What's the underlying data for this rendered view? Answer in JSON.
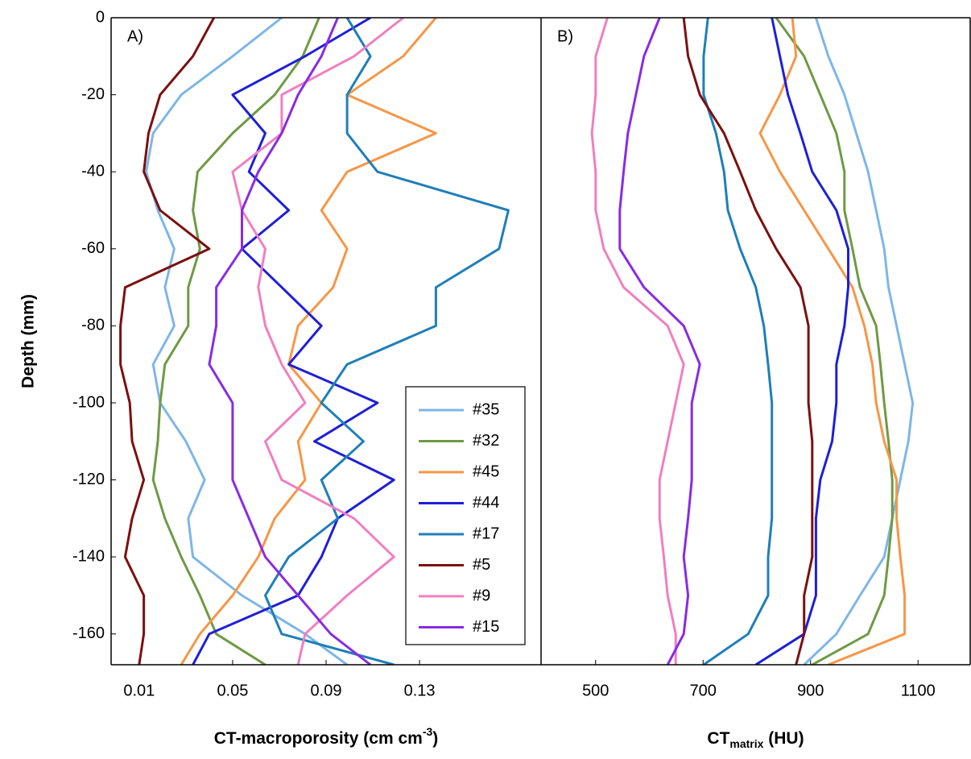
{
  "chart_data": [
    {
      "type": "line",
      "panel_label": "A)",
      "x_label": [
        "CT-macroporosity (cm cm",
        "-3",
        ")"
      ],
      "y_label": "Depth (mm)",
      "y": [
        0,
        -10,
        -20,
        -30,
        -40,
        -50,
        -60,
        -70,
        -80,
        -90,
        -100,
        -110,
        -120,
        -130,
        -140,
        -150,
        -160,
        -168
      ],
      "ylim": [
        -168,
        0
      ],
      "yticks": [
        0,
        -20,
        -40,
        -60,
        -80,
        -100,
        -120,
        -140,
        -160
      ],
      "xlim": [
        -0.002,
        0.182
      ],
      "xticks": [
        0.01,
        0.05,
        0.09,
        0.13
      ],
      "legend": "lower right",
      "series": [
        {
          "name": "#35",
          "color": "#7eb6e8",
          "values": [
            0.071,
            0.05,
            0.028,
            0.016,
            0.013,
            0.018,
            0.025,
            0.021,
            0.025,
            0.016,
            0.019,
            0.03,
            0.038,
            0.031,
            0.033,
            0.054,
            0.081,
            0.099
          ]
        },
        {
          "name": "#32",
          "color": "#6e9a44",
          "values": [
            0.087,
            0.08,
            0.068,
            0.05,
            0.035,
            0.033,
            0.036,
            0.031,
            0.031,
            0.021,
            0.019,
            0.018,
            0.016,
            0.021,
            0.028,
            0.036,
            0.043,
            0.064
          ]
        },
        {
          "name": "#45",
          "color": "#f79646",
          "values": [
            0.137,
            0.123,
            0.099,
            0.137,
            0.099,
            0.088,
            0.099,
            0.093,
            0.078,
            0.074,
            0.088,
            0.078,
            0.081,
            0.068,
            0.061,
            0.05,
            0.036,
            0.028
          ]
        },
        {
          "name": "#44",
          "color": "#1f1fd6",
          "values": [
            0.109,
            0.081,
            0.05,
            0.064,
            0.057,
            0.074,
            0.054,
            0.071,
            0.088,
            0.074,
            0.112,
            0.085,
            0.119,
            0.095,
            0.088,
            0.078,
            0.04,
            0.033
          ]
        },
        {
          "name": "#17",
          "color": "#1f7fb8",
          "values": [
            0.099,
            0.109,
            0.099,
            0.099,
            0.112,
            0.168,
            0.164,
            0.137,
            0.137,
            0.099,
            0.088,
            0.106,
            0.088,
            0.095,
            0.074,
            0.064,
            0.071,
            0.119
          ]
        },
        {
          "name": "#5",
          "color": "#7b1010",
          "values": [
            0.042,
            0.033,
            0.019,
            0.014,
            0.012,
            0.019,
            0.04,
            0.004,
            0.002,
            0.002,
            0.006,
            0.007,
            0.012,
            0.007,
            0.004,
            0.012,
            0.012,
            0.01
          ]
        },
        {
          "name": "#9",
          "color": "#f07fc0",
          "values": [
            0.123,
            0.102,
            0.071,
            0.071,
            0.05,
            0.054,
            0.064,
            0.061,
            0.064,
            0.071,
            0.081,
            0.064,
            0.071,
            0.102,
            0.119,
            0.099,
            0.081,
            0.078
          ]
        },
        {
          "name": "#15",
          "color": "#8a2be2",
          "values": [
            0.095,
            0.088,
            0.078,
            0.071,
            0.061,
            0.054,
            0.054,
            0.043,
            0.043,
            0.04,
            0.05,
            0.05,
            0.05,
            0.057,
            0.064,
            0.078,
            0.092,
            0.109
          ]
        }
      ]
    },
    {
      "type": "line",
      "panel_label": "B)",
      "x_label": [
        "CT",
        "matrix",
        " (HU)"
      ],
      "y": [
        0,
        -10,
        -20,
        -30,
        -40,
        -50,
        -60,
        -70,
        -80,
        -90,
        -100,
        -110,
        -120,
        -130,
        -140,
        -150,
        -160,
        -168
      ],
      "ylim": [
        -168,
        0
      ],
      "xlim": [
        398.5,
        1197
      ],
      "xticks": [
        500,
        700,
        900,
        1100
      ],
      "series": [
        {
          "color": "#7eb6e8",
          "values": [
            910,
            933,
            963,
            985,
            1007,
            1022,
            1037,
            1045,
            1060,
            1075,
            1090,
            1082,
            1067,
            1052,
            1037,
            992,
            948,
            888
          ]
        },
        {
          "color": "#6e9a44",
          "values": [
            836,
            888,
            918,
            948,
            963,
            963,
            978,
            992,
            1022,
            1030,
            1037,
            1045,
            1052,
            1052,
            1045,
            1037,
            1007,
            903
          ]
        },
        {
          "color": "#f79646",
          "values": [
            866,
            873,
            843,
            806,
            843,
            888,
            933,
            978,
            1000,
            1015,
            1022,
            1037,
            1060,
            1060,
            1067,
            1075,
            1075,
            933
          ]
        },
        {
          "color": "#1f1fd6",
          "values": [
            828,
            843,
            858,
            881,
            903,
            948,
            970,
            970,
            963,
            948,
            948,
            940,
            918,
            910,
            910,
            910,
            888,
            798
          ]
        },
        {
          "color": "#1f7fb8",
          "values": [
            709,
            701,
            701,
            724,
            739,
            746,
            769,
            798,
            813,
            821,
            828,
            828,
            828,
            828,
            821,
            821,
            784,
            701
          ]
        },
        {
          "color": "#7b1010",
          "values": [
            664,
            672,
            694,
            739,
            769,
            798,
            836,
            881,
            896,
            896,
            896,
            903,
            903,
            903,
            903,
            888,
            888,
            873
          ]
        },
        {
          "color": "#f07fc0",
          "values": [
            522,
            500,
            500,
            493,
            500,
            500,
            515,
            552,
            634,
            664,
            649,
            634,
            619,
            619,
            627,
            634,
            649,
            649
          ]
        },
        {
          "color": "#8a2be2",
          "values": [
            619,
            590,
            575,
            560,
            552,
            545,
            545,
            590,
            664,
            694,
            679,
            679,
            679,
            672,
            664,
            672,
            664,
            634
          ]
        }
      ]
    }
  ]
}
